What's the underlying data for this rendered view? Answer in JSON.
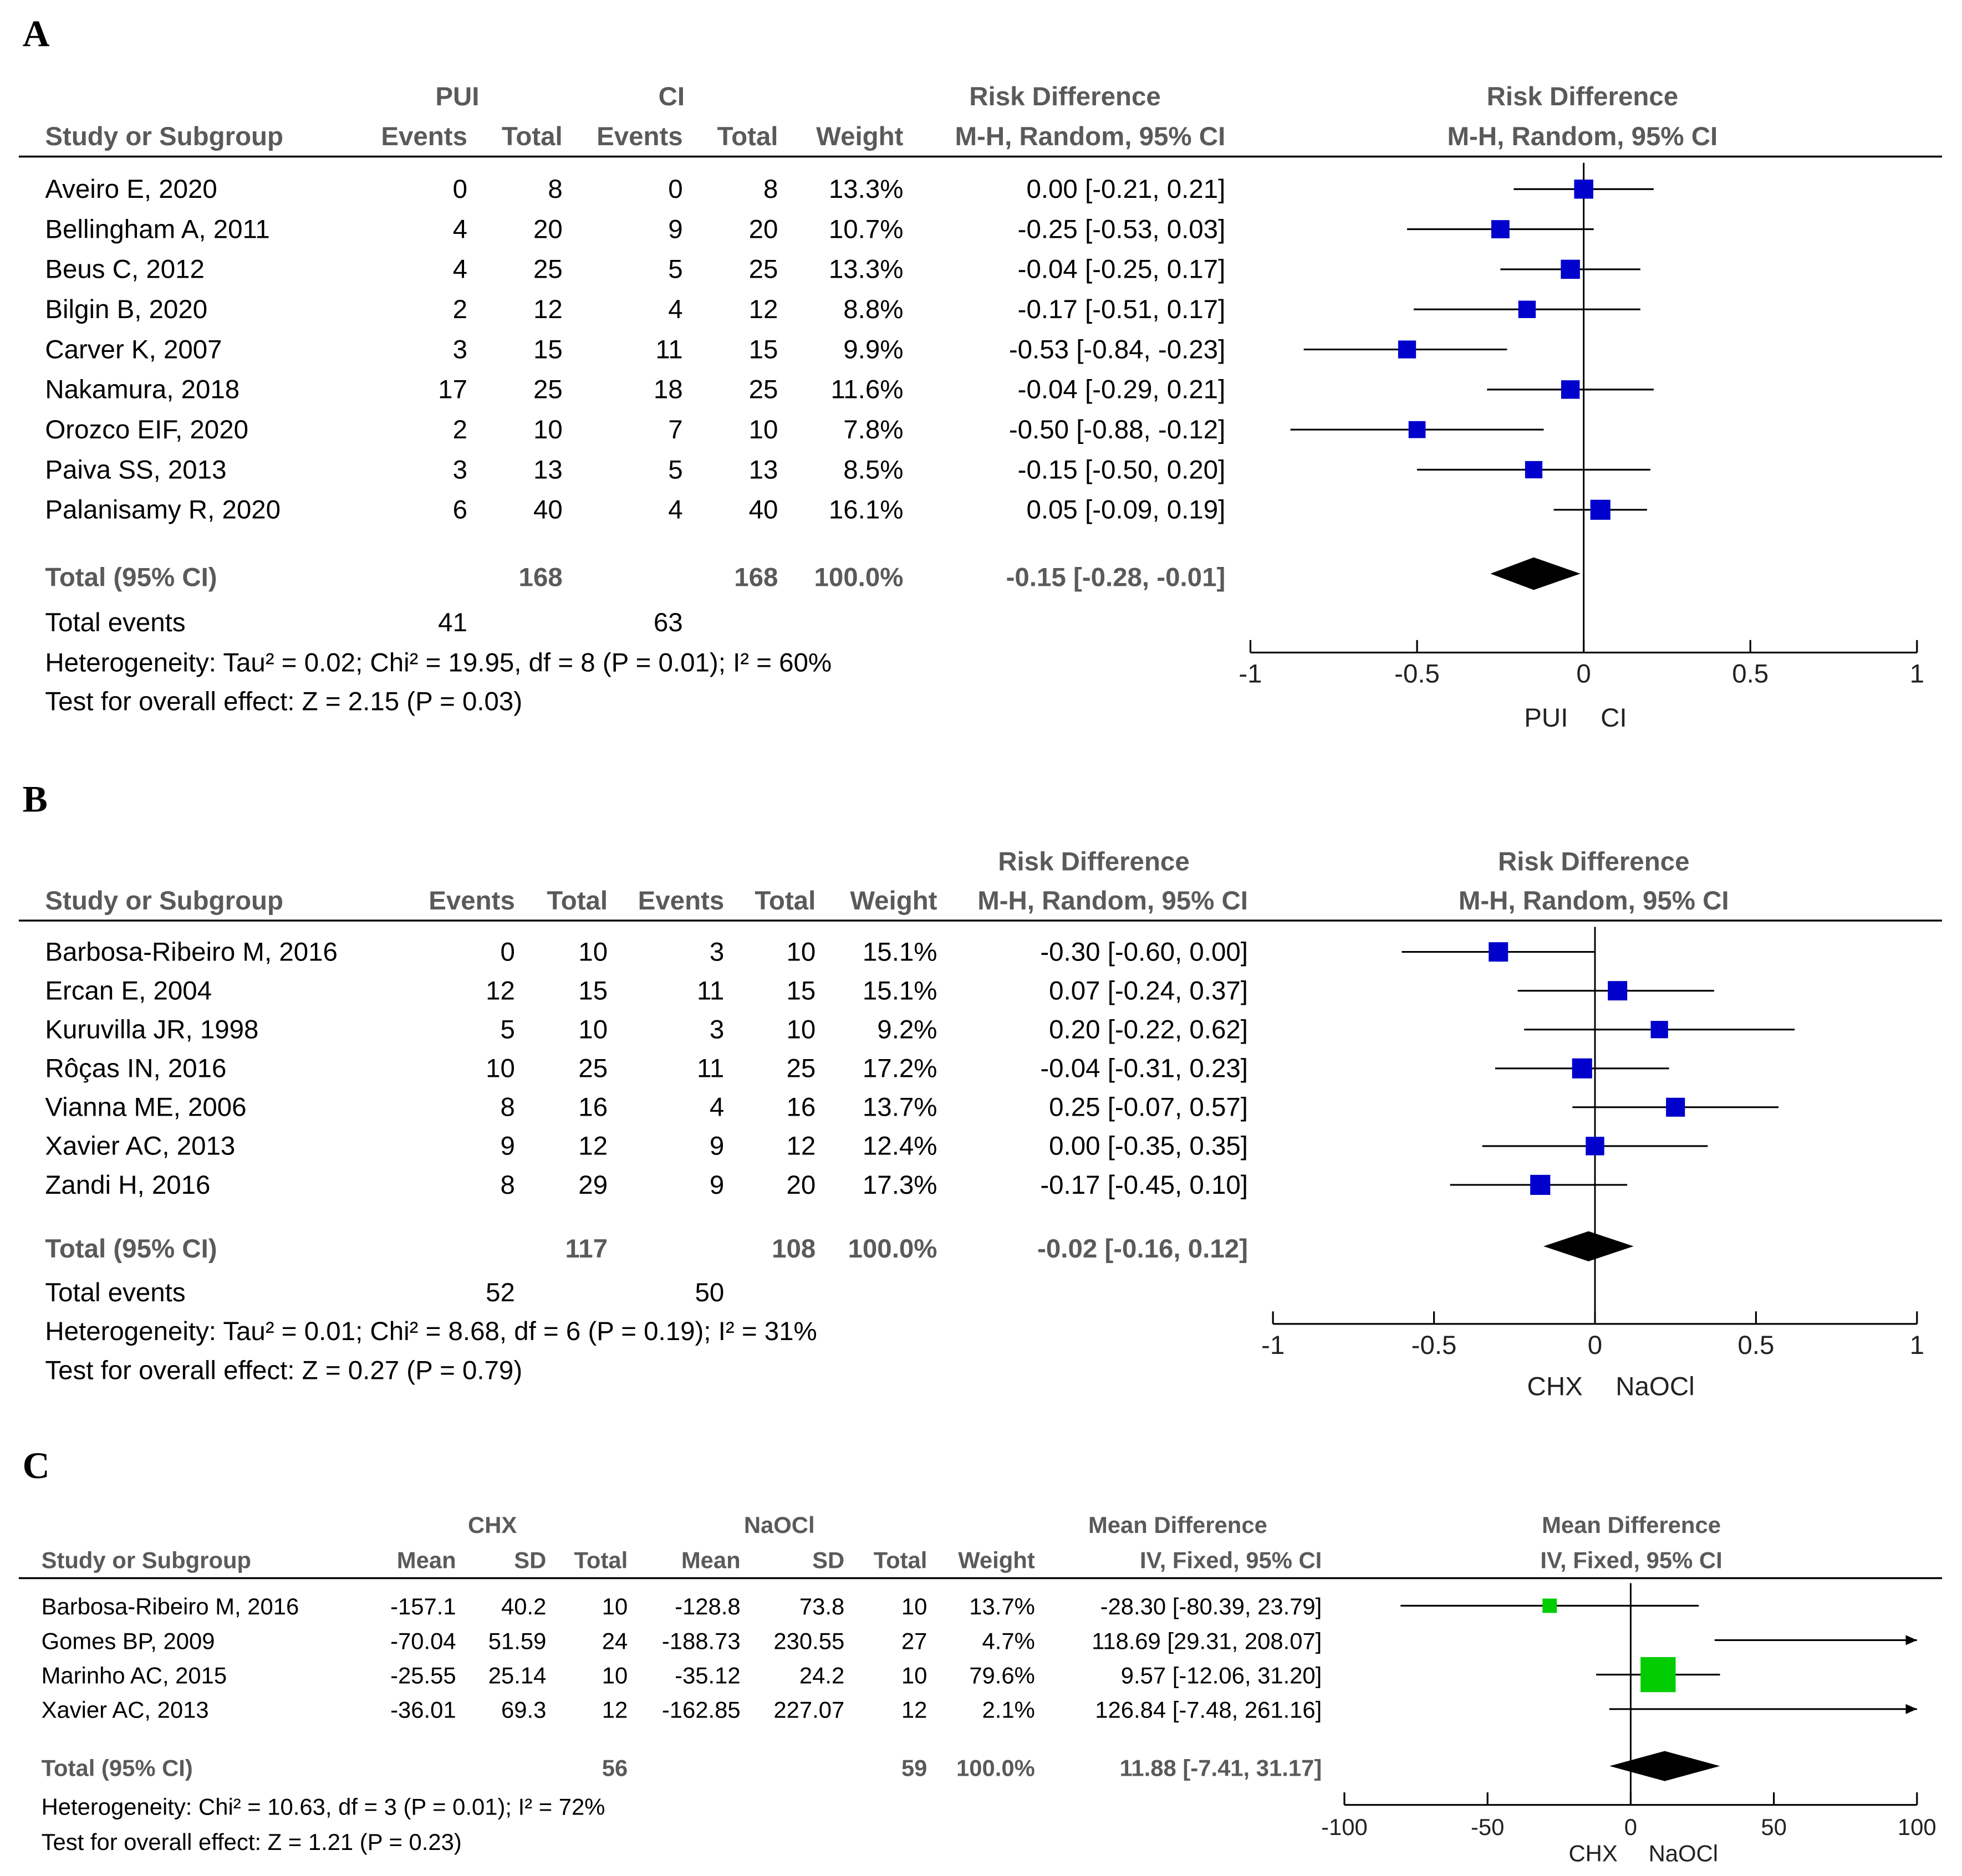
{
  "chart_data": [
    {
      "type": "forest",
      "panel": "A",
      "measure": "Risk Difference",
      "method": "M-H, Random, 95% CI",
      "columns": [
        "Study or Subgroup",
        "Events",
        "Total",
        "Events",
        "Total",
        "Weight"
      ],
      "groups": [
        "PUI",
        "CI"
      ],
      "studies": [
        {
          "study": "Aveiro E, 2020",
          "e1": "0",
          "t1": "8",
          "e2": "0",
          "t2": "8",
          "weight": "13.3%",
          "ci_text": "0.00 [-0.21, 0.21]",
          "est": 0.0,
          "lo": -0.21,
          "hi": 0.21
        },
        {
          "study": "Bellingham A, 2011",
          "e1": "4",
          "t1": "20",
          "e2": "9",
          "t2": "20",
          "weight": "10.7%",
          "ci_text": "-0.25 [-0.53, 0.03]",
          "est": -0.25,
          "lo": -0.53,
          "hi": 0.03
        },
        {
          "study": "Beus C, 2012",
          "e1": "4",
          "t1": "25",
          "e2": "5",
          "t2": "25",
          "weight": "13.3%",
          "ci_text": "-0.04 [-0.25, 0.17]",
          "est": -0.04,
          "lo": -0.25,
          "hi": 0.17
        },
        {
          "study": "Bilgin B, 2020",
          "e1": "2",
          "t1": "12",
          "e2": "4",
          "t2": "12",
          "weight": "8.8%",
          "ci_text": "-0.17 [-0.51, 0.17]",
          "est": -0.17,
          "lo": -0.51,
          "hi": 0.17
        },
        {
          "study": "Carver K, 2007",
          "e1": "3",
          "t1": "15",
          "e2": "11",
          "t2": "15",
          "weight": "9.9%",
          "ci_text": "-0.53 [-0.84, -0.23]",
          "est": -0.53,
          "lo": -0.84,
          "hi": -0.23
        },
        {
          "study": "Nakamura, 2018",
          "e1": "17",
          "t1": "25",
          "e2": "18",
          "t2": "25",
          "weight": "11.6%",
          "ci_text": "-0.04 [-0.29, 0.21]",
          "est": -0.04,
          "lo": -0.29,
          "hi": 0.21
        },
        {
          "study": "Orozco EIF,  2020",
          "e1": "2",
          "t1": "10",
          "e2": "7",
          "t2": "10",
          "weight": "7.8%",
          "ci_text": "-0.50 [-0.88, -0.12]",
          "est": -0.5,
          "lo": -0.88,
          "hi": -0.12
        },
        {
          "study": "Paiva SS, 2013",
          "e1": "3",
          "t1": "13",
          "e2": "5",
          "t2": "13",
          "weight": "8.5%",
          "ci_text": "-0.15 [-0.50, 0.20]",
          "est": -0.15,
          "lo": -0.5,
          "hi": 0.2
        },
        {
          "study": "Palanisamy R, 2020",
          "e1": "6",
          "t1": "40",
          "e2": "4",
          "t2": "40",
          "weight": "16.1%",
          "ci_text": "0.05 [-0.09, 0.19]",
          "est": 0.05,
          "lo": -0.09,
          "hi": 0.19
        }
      ],
      "total": {
        "label": "Total (95% CI)",
        "t1": "168",
        "t2": "168",
        "weight": "100.0%",
        "ci_text": "-0.15 [-0.28, -0.01]",
        "est": -0.15,
        "lo": -0.28,
        "hi": -0.01
      },
      "total_events": {
        "label": "Total events",
        "e1": "41",
        "e2": "63"
      },
      "heterogeneity": "Heterogeneity: Tau² = 0.02; Chi² = 19.95, df = 8 (P = 0.01); I² = 60%",
      "overall": "Test for overall effect: Z = 2.15 (P = 0.03)",
      "xlim": [
        -1,
        1
      ],
      "ticks": [
        -1,
        -0.5,
        0,
        0.5,
        1
      ],
      "tick_labels": [
        "-1",
        "-0.5",
        "0",
        "0.5",
        "1"
      ],
      "favours": [
        "PUI",
        "CI"
      ],
      "marker_color": "#0000cc"
    },
    {
      "type": "forest",
      "panel": "B",
      "measure": "Risk Difference",
      "method": "M-H, Random, 95% CI",
      "columns": [
        "Study or Subgroup",
        "Events",
        "Total",
        "Events",
        "Total",
        "Weight"
      ],
      "groups": [
        "",
        ""
      ],
      "studies": [
        {
          "study": "Barbosa-Ribeiro M, 2016",
          "e1": "0",
          "t1": "10",
          "e2": "3",
          "t2": "10",
          "weight": "15.1%",
          "ci_text": "-0.30 [-0.60, 0.00]",
          "est": -0.3,
          "lo": -0.6,
          "hi": 0.0
        },
        {
          "study": "Ercan E, 2004",
          "e1": "12",
          "t1": "15",
          "e2": "11",
          "t2": "15",
          "weight": "15.1%",
          "ci_text": "0.07 [-0.24, 0.37]",
          "est": 0.07,
          "lo": -0.24,
          "hi": 0.37
        },
        {
          "study": "Kuruvilla JR, 1998",
          "e1": "5",
          "t1": "10",
          "e2": "3",
          "t2": "10",
          "weight": "9.2%",
          "ci_text": "0.20 [-0.22, 0.62]",
          "est": 0.2,
          "lo": -0.22,
          "hi": 0.62
        },
        {
          "study": "Rôças IN, 2016",
          "e1": "10",
          "t1": "25",
          "e2": "11",
          "t2": "25",
          "weight": "17.2%",
          "ci_text": "-0.04 [-0.31, 0.23]",
          "est": -0.04,
          "lo": -0.31,
          "hi": 0.23
        },
        {
          "study": "Vianna ME, 2006",
          "e1": "8",
          "t1": "16",
          "e2": "4",
          "t2": "16",
          "weight": "13.7%",
          "ci_text": "0.25 [-0.07, 0.57]",
          "est": 0.25,
          "lo": -0.07,
          "hi": 0.57
        },
        {
          "study": "Xavier AC, 2013",
          "e1": "9",
          "t1": "12",
          "e2": "9",
          "t2": "12",
          "weight": "12.4%",
          "ci_text": "0.00 [-0.35, 0.35]",
          "est": 0.0,
          "lo": -0.35,
          "hi": 0.35
        },
        {
          "study": "Zandi H, 2016",
          "e1": "8",
          "t1": "29",
          "e2": "9",
          "t2": "20",
          "weight": "17.3%",
          "ci_text": "-0.17 [-0.45, 0.10]",
          "est": -0.17,
          "lo": -0.45,
          "hi": 0.1
        }
      ],
      "total": {
        "label": "Total (95% CI)",
        "t1": "117",
        "t2": "108",
        "weight": "100.0%",
        "ci_text": "-0.02 [-0.16, 0.12]",
        "est": -0.02,
        "lo": -0.16,
        "hi": 0.12
      },
      "total_events": {
        "label": "Total events",
        "e1": "52",
        "e2": "50"
      },
      "heterogeneity": "Heterogeneity: Tau² = 0.01; Chi² = 8.68, df = 6 (P = 0.19); I² = 31%",
      "overall": "Test for overall effect: Z = 0.27 (P = 0.79)",
      "xlim": [
        -1,
        1
      ],
      "ticks": [
        -1,
        -0.5,
        0,
        0.5,
        1
      ],
      "tick_labels": [
        "-1",
        "-0.5",
        "0",
        "0.5",
        "1"
      ],
      "favours": [
        "CHX",
        "NaOCl"
      ],
      "marker_color": "#0000cc"
    },
    {
      "type": "forest",
      "panel": "C",
      "measure": "Mean Difference",
      "method": "IV, Fixed, 95% CI",
      "columns": [
        "Study or Subgroup",
        "Mean",
        "SD",
        "Total",
        "Mean",
        "SD",
        "Total",
        "Weight"
      ],
      "groups": [
        "CHX",
        "NaOCl"
      ],
      "studies": [
        {
          "study": "Barbosa-Ribeiro M, 2016",
          "m1": "-157.1",
          "sd1": "40.2",
          "t1": "10",
          "m2": "-128.8",
          "sd2": "73.8",
          "t2": "10",
          "weight": "13.7%",
          "ci_text": "-28.30 [-80.39, 23.79]",
          "est": -28.3,
          "lo": -80.39,
          "hi": 23.79
        },
        {
          "study": "Gomes BP, 2009",
          "m1": "-70.04",
          "sd1": "51.59",
          "t1": "24",
          "m2": "-188.73",
          "sd2": "230.55",
          "t2": "27",
          "weight": "4.7%",
          "ci_text": "118.69 [29.31, 208.07]",
          "est": 118.69,
          "lo": 29.31,
          "hi": 208.07
        },
        {
          "study": "Marinho AC, 2015",
          "m1": "-25.55",
          "sd1": "25.14",
          "t1": "10",
          "m2": "-35.12",
          "sd2": "24.2",
          "t2": "10",
          "weight": "79.6%",
          "ci_text": "9.57 [-12.06, 31.20]",
          "est": 9.57,
          "lo": -12.06,
          "hi": 31.2
        },
        {
          "study": "Xavier AC, 2013",
          "m1": "-36.01",
          "sd1": "69.3",
          "t1": "12",
          "m2": "-162.85",
          "sd2": "227.07",
          "t2": "12",
          "weight": "2.1%",
          "ci_text": "126.84 [-7.48, 261.16]",
          "est": 126.84,
          "lo": -7.48,
          "hi": 261.16
        }
      ],
      "total": {
        "label": "Total (95% CI)",
        "t1": "56",
        "t2": "59",
        "weight": "100.0%",
        "ci_text": "11.88 [-7.41, 31.17]",
        "est": 11.88,
        "lo": -7.41,
        "hi": 31.17
      },
      "heterogeneity": "Heterogeneity: Chi² = 10.63, df = 3 (P = 0.01); I² = 72%",
      "overall": "Test for overall effect: Z = 1.21 (P = 0.23)",
      "xlim": [
        -100,
        100
      ],
      "ticks": [
        -100,
        -50,
        0,
        50,
        100
      ],
      "tick_labels": [
        "-100",
        "-50",
        "0",
        "50",
        "100"
      ],
      "favours": [
        "CHX",
        "NaOCl"
      ],
      "marker_color": "#00cc00"
    }
  ]
}
